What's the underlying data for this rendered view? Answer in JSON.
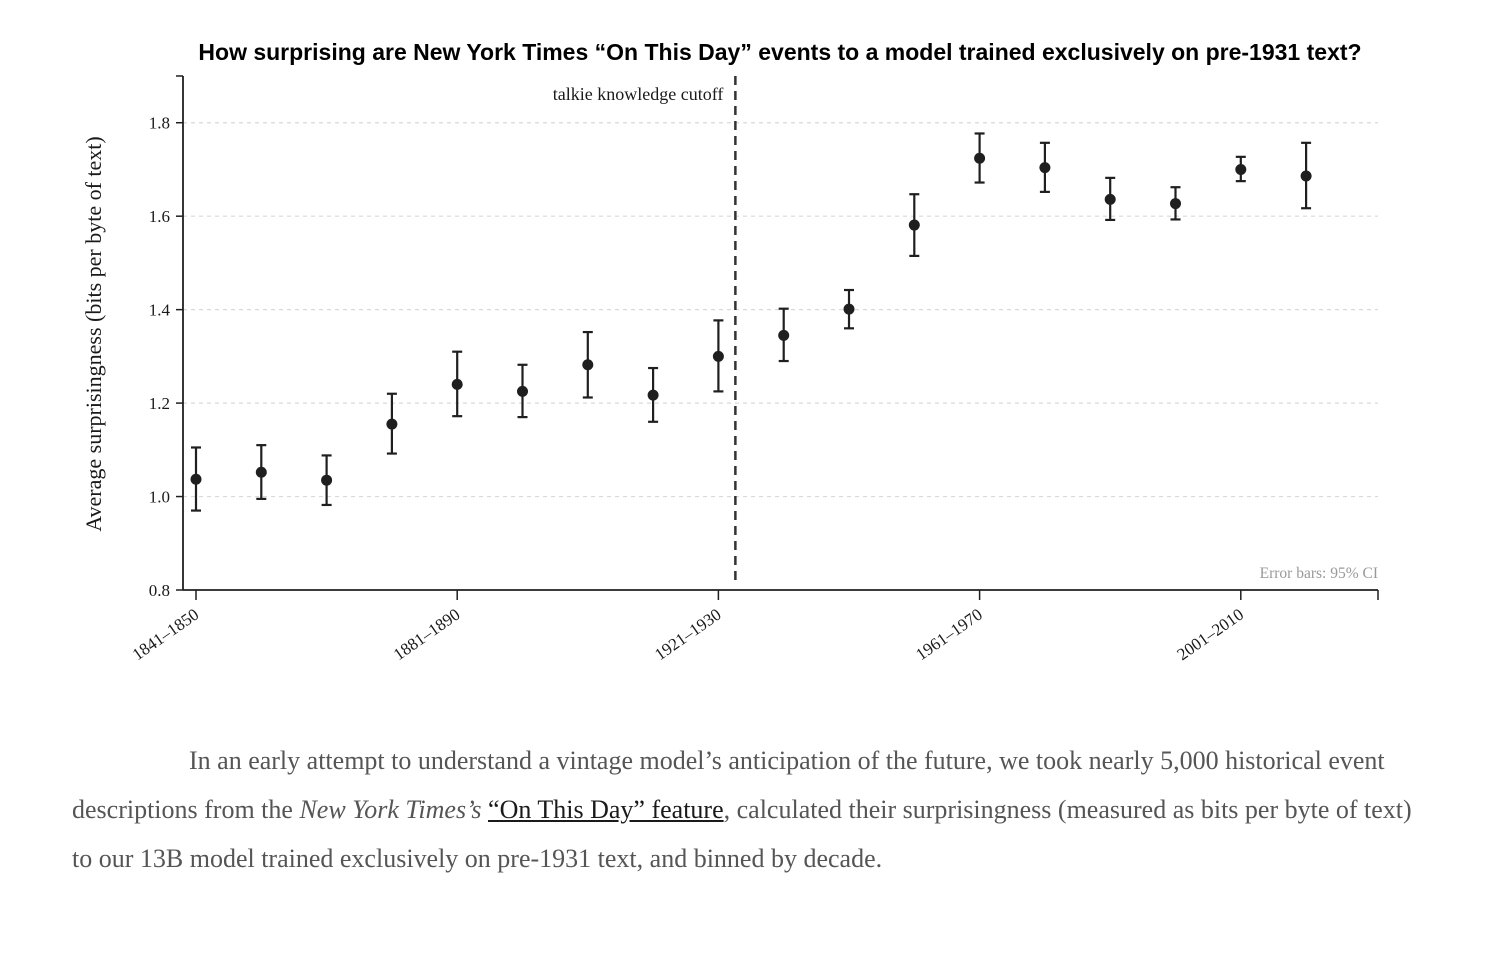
{
  "chart_data": {
    "type": "scatter",
    "title": "How surprising are New York Times “On This Day” events to a model trained exclusively on pre-1931 text?",
    "ylabel": "Average surprisingness (bits per byte of text)",
    "xlabel": "",
    "ylim": [
      0.8,
      1.9
    ],
    "yticks": [
      0.8,
      1.0,
      1.2,
      1.4,
      1.6,
      1.8
    ],
    "ytick_labels": [
      "0.8",
      "1.0",
      "1.2",
      "1.4",
      "1.6",
      "1.8"
    ],
    "x_tick_labels": [
      "1841–1850",
      "1881–1890",
      "1921–1930",
      "1961–1970",
      "2001–2010"
    ],
    "x_tick_indices": [
      0,
      4,
      8,
      12,
      16
    ],
    "categories": [
      "1841–1850",
      "1851–1860",
      "1861–1870",
      "1871–1880",
      "1881–1890",
      "1891–1900",
      "1901–1910",
      "1911–1920",
      "1921–1930",
      "1931–1940",
      "1941–1950",
      "1951–1960",
      "1961–1970",
      "1971–1980",
      "1981–1990",
      "1991–2000",
      "2001–2010",
      "2011–2020"
    ],
    "values": [
      1.037,
      1.052,
      1.035,
      1.155,
      1.24,
      1.225,
      1.282,
      1.217,
      1.3,
      1.345,
      1.401,
      1.581,
      1.724,
      1.704,
      1.636,
      1.627,
      1.7,
      1.686
    ],
    "ci_low": [
      0.97,
      0.995,
      0.982,
      1.092,
      1.172,
      1.17,
      1.212,
      1.16,
      1.225,
      1.29,
      1.36,
      1.515,
      1.672,
      1.652,
      1.592,
      1.593,
      1.675,
      1.617
    ],
    "ci_high": [
      1.105,
      1.11,
      1.088,
      1.22,
      1.31,
      1.282,
      1.352,
      1.275,
      1.377,
      1.402,
      1.442,
      1.647,
      1.777,
      1.757,
      1.682,
      1.662,
      1.727,
      1.757
    ],
    "cutoff_label": "talkie knowledge cutoff",
    "cutoff_position": "between 1921–1930 and 1931–1940",
    "error_note": "Error bars: 95% CI",
    "grid": "horizontal dashed",
    "marker_color": "#1f1f1f",
    "grid_color": "#d9d9d9",
    "error_note_color": "#999999"
  },
  "caption": {
    "part1": "In an early attempt to understand a vintage model’s anticipation of the future, we took nearly 5,000 historical event descriptions from the ",
    "italic": "New York Times’s",
    "part2": " ",
    "link_text": "“On This Day” feature",
    "part3": ", calculated their surprisingness (measured as bits per byte of text) to our 13B model trained exclusively on pre-1931 text, and binned by decade.",
    "text_color": "#555555"
  }
}
